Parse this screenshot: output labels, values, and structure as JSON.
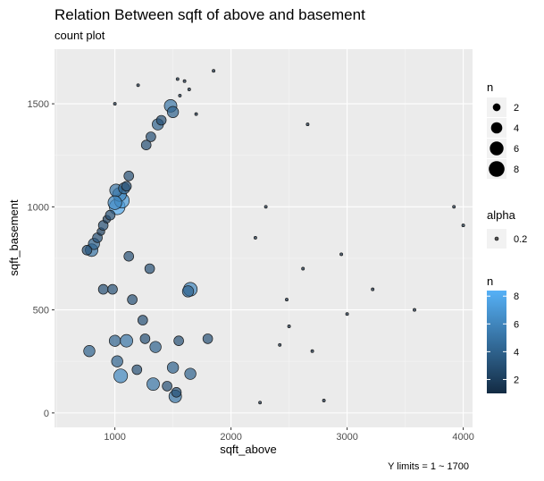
{
  "chart_data": {
    "type": "scatter",
    "title": "Relation Between sqft of above and basement",
    "subtitle": "count plot",
    "caption": "Y limits = 1 ~ 1700",
    "xlabel": "sqft_above",
    "ylabel": "sqft_basement",
    "xlim": [
      480,
      4080
    ],
    "ylim": [
      -70,
      1765
    ],
    "x_ticks": [
      1000,
      2000,
      3000,
      4000
    ],
    "y_ticks": [
      0,
      500,
      1000,
      1500
    ],
    "grid": true,
    "legend_position": "right",
    "legends": {
      "size": {
        "title": "n",
        "breaks": [
          2,
          4,
          6,
          8
        ]
      },
      "alpha": {
        "title": "alpha",
        "breaks": [
          "0.2"
        ]
      },
      "color": {
        "title": "n",
        "breaks": [
          2,
          4,
          6,
          8
        ],
        "range": [
          1,
          8.4
        ],
        "low_color": "#132B43",
        "high_color": "#56B1F7"
      }
    },
    "points": [
      [
        1020,
        1000,
        8
      ],
      [
        1060,
        1030,
        7
      ],
      [
        1040,
        1060,
        6
      ],
      [
        1010,
        1080,
        5
      ],
      [
        1000,
        1020,
        6
      ],
      [
        1080,
        1090,
        4
      ],
      [
        1100,
        1100,
        3
      ],
      [
        1120,
        1150,
        3
      ],
      [
        800,
        790,
        5
      ],
      [
        820,
        820,
        4
      ],
      [
        760,
        790,
        3
      ],
      [
        850,
        850,
        3
      ],
      [
        880,
        880,
        2
      ],
      [
        900,
        910,
        3
      ],
      [
        930,
        940,
        2
      ],
      [
        960,
        960,
        3
      ],
      [
        1000,
        1500,
        1
      ],
      [
        1200,
        1590,
        1
      ],
      [
        1270,
        1300,
        3
      ],
      [
        1310,
        1340,
        3
      ],
      [
        1370,
        1400,
        4
      ],
      [
        1400,
        1420,
        3
      ],
      [
        1480,
        1490,
        5
      ],
      [
        1500,
        1460,
        4
      ],
      [
        1540,
        1620,
        1
      ],
      [
        1560,
        1540,
        1
      ],
      [
        1600,
        1610,
        1
      ],
      [
        1640,
        1570,
        1
      ],
      [
        1850,
        1660,
        1
      ],
      [
        1700,
        1450,
        1
      ],
      [
        1650,
        600,
        6
      ],
      [
        1630,
        590,
        4
      ],
      [
        1550,
        350,
        3
      ],
      [
        1500,
        220,
        4
      ],
      [
        1520,
        80,
        5
      ],
      [
        1530,
        100,
        3
      ],
      [
        1330,
        140,
        5
      ],
      [
        1260,
        360,
        3
      ],
      [
        1100,
        350,
        5
      ],
      [
        1050,
        180,
        6
      ],
      [
        1020,
        250,
        4
      ],
      [
        1190,
        210,
        3
      ],
      [
        1450,
        130,
        3
      ],
      [
        1650,
        190,
        4
      ],
      [
        1800,
        360,
        3
      ],
      [
        1350,
        320,
        4
      ],
      [
        900,
        600,
        3
      ],
      [
        1000,
        350,
        4
      ],
      [
        1150,
        550,
        3
      ],
      [
        780,
        300,
        4
      ],
      [
        980,
        600,
        3
      ],
      [
        1120,
        760,
        3
      ],
      [
        1300,
        700,
        3
      ],
      [
        1240,
        450,
        3
      ],
      [
        3920,
        1000,
        1
      ],
      [
        4000,
        910,
        1
      ],
      [
        3580,
        500,
        1
      ],
      [
        3220,
        600,
        1
      ],
      [
        3000,
        480,
        1
      ],
      [
        2950,
        770,
        1
      ],
      [
        2660,
        1400,
        1
      ],
      [
        2620,
        700,
        1
      ],
      [
        2800,
        60,
        1
      ],
      [
        2700,
        300,
        1
      ],
      [
        2500,
        420,
        1
      ],
      [
        2420,
        330,
        1
      ],
      [
        2250,
        50,
        1
      ],
      [
        2210,
        850,
        1
      ],
      [
        2300,
        1000,
        1
      ],
      [
        2480,
        550,
        1
      ]
    ]
  }
}
